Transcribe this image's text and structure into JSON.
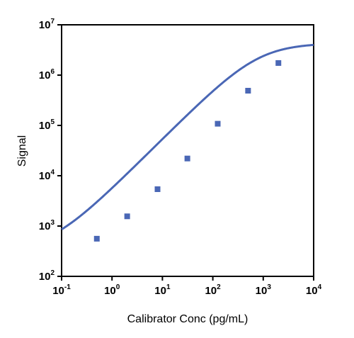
{
  "chart_data": {
    "type": "scatter",
    "xlabel": "Calibrator Conc (pg/mL)",
    "ylabel": "Signal",
    "x_scale": "log",
    "y_scale": "log",
    "xlim": [
      0.1,
      10000
    ],
    "ylim": [
      100,
      10000000
    ],
    "x_ticks": [
      {
        "base": "10",
        "exp": "-1"
      },
      {
        "base": "10",
        "exp": "0"
      },
      {
        "base": "10",
        "exp": "1"
      },
      {
        "base": "10",
        "exp": "2"
      },
      {
        "base": "10",
        "exp": "3"
      },
      {
        "base": "10",
        "exp": "4"
      }
    ],
    "y_ticks": [
      {
        "base": "10",
        "exp": "2"
      },
      {
        "base": "10",
        "exp": "3"
      },
      {
        "base": "10",
        "exp": "4"
      },
      {
        "base": "10",
        "exp": "5"
      },
      {
        "base": "10",
        "exp": "6"
      },
      {
        "base": "10",
        "exp": "7"
      }
    ],
    "grid": false,
    "legend": "none",
    "series": [
      {
        "marker": "square",
        "color": "#4a67b5",
        "x": [
          0.5,
          2,
          8,
          31.25,
          125,
          500,
          2000
        ],
        "y": [
          560,
          1560,
          5400,
          22000,
          108000,
          490000,
          1740000
        ]
      }
    ],
    "fit_curve": {
      "model": "4PL",
      "color": "#4a67b5",
      "bottom": 320,
      "top": 4300000,
      "ec50": 800,
      "hill": 1.0
    }
  }
}
